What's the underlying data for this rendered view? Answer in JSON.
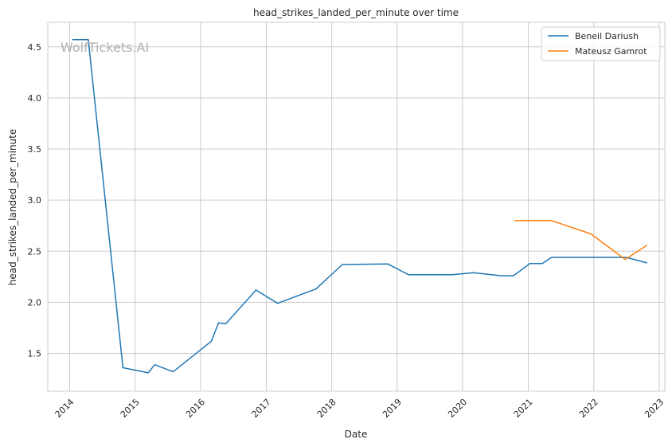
{
  "chart_data": {
    "type": "line",
    "title": "head_strikes_landed_per_minute over time",
    "xlabel": "Date",
    "ylabel": "head_strikes_landed_per_minute",
    "watermark": "WolfTickets.AI",
    "xlim": [
      "2013-09-01",
      "2023-02-01"
    ],
    "ylim": [
      1.13,
      4.74
    ],
    "x_ticks": [
      "2014",
      "2015",
      "2016",
      "2017",
      "2018",
      "2019",
      "2020",
      "2021",
      "2022",
      "2023"
    ],
    "y_ticks": [
      "1.5",
      "2.0",
      "2.5",
      "3.0",
      "3.5",
      "4.0",
      "4.5"
    ],
    "y_tick_values": [
      1.5,
      2.0,
      2.5,
      3.0,
      3.5,
      4.0,
      4.5
    ],
    "grid": true,
    "legend_position": "top-right",
    "series": [
      {
        "name": "Beneil Dariush",
        "color": "#1f77b4",
        "points": [
          [
            "2014-01-15",
            4.57
          ],
          [
            "2014-04-15",
            4.57
          ],
          [
            "2014-10-25",
            1.36
          ],
          [
            "2015-03-15",
            1.31
          ],
          [
            "2015-04-20",
            1.39
          ],
          [
            "2015-08-01",
            1.32
          ],
          [
            "2016-03-01",
            1.62
          ],
          [
            "2016-04-10",
            1.8
          ],
          [
            "2016-05-20",
            1.79
          ],
          [
            "2016-11-05",
            2.12
          ],
          [
            "2017-03-05",
            1.99
          ],
          [
            "2017-10-05",
            2.13
          ],
          [
            "2018-03-01",
            2.37
          ],
          [
            "2018-11-10",
            2.375
          ],
          [
            "2019-03-05",
            2.27
          ],
          [
            "2019-11-05",
            2.27
          ],
          [
            "2020-03-01",
            2.29
          ],
          [
            "2020-08-05",
            2.26
          ],
          [
            "2020-10-10",
            2.26
          ],
          [
            "2021-01-10",
            2.38
          ],
          [
            "2021-03-20",
            2.38
          ],
          [
            "2021-05-10",
            2.44
          ],
          [
            "2022-07-01",
            2.44
          ],
          [
            "2022-10-25",
            2.385
          ]
        ]
      },
      {
        "name": "Mateusz Gamrot",
        "color": "#ff7f0e",
        "points": [
          [
            "2020-10-15",
            2.8
          ],
          [
            "2021-05-10",
            2.8
          ],
          [
            "2021-12-15",
            2.67
          ],
          [
            "2022-06-25",
            2.42
          ],
          [
            "2022-10-25",
            2.56
          ]
        ]
      }
    ]
  }
}
